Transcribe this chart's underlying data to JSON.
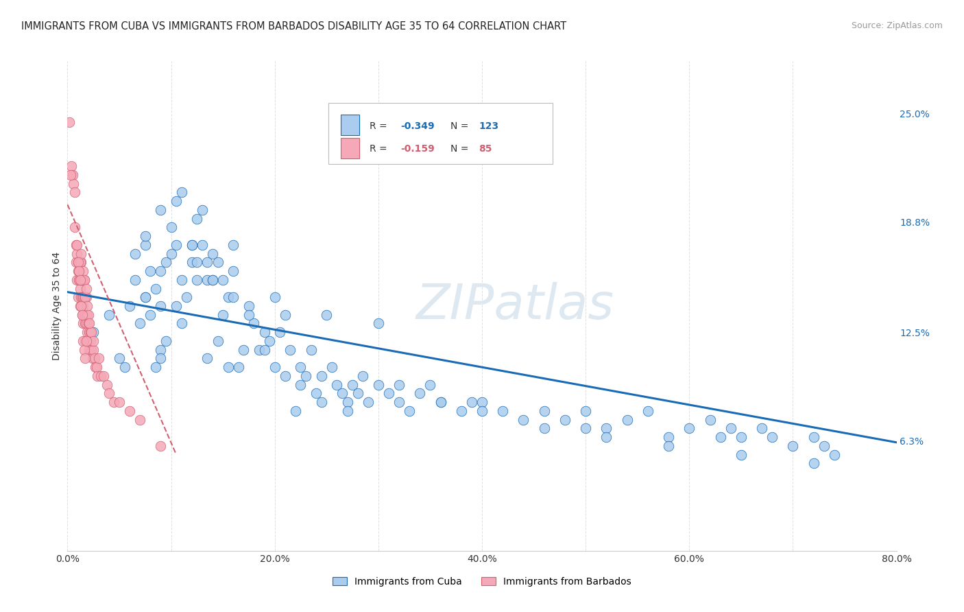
{
  "title": "IMMIGRANTS FROM CUBA VS IMMIGRANTS FROM BARBADOS DISABILITY AGE 35 TO 64 CORRELATION CHART",
  "source": "Source: ZipAtlas.com",
  "ylabel": "Disability Age 35 to 64",
  "xlim": [
    0.0,
    0.8
  ],
  "ylim": [
    0.0,
    0.28
  ],
  "xticks": [
    0.0,
    0.1,
    0.2,
    0.3,
    0.4,
    0.5,
    0.6,
    0.7,
    0.8
  ],
  "xticklabels": [
    "0.0%",
    "",
    "20.0%",
    "",
    "40.0%",
    "",
    "60.0%",
    "",
    "80.0%"
  ],
  "right_yticks": [
    0.063,
    0.125,
    0.188,
    0.25
  ],
  "right_yticklabels": [
    "6.3%",
    "12.5%",
    "18.8%",
    "25.0%"
  ],
  "cuba_color": "#aaccee",
  "barbados_color": "#f5a8b8",
  "trendline_cuba_color": "#1a6bb5",
  "trendline_barbados_color": "#d06070",
  "watermark_color": "#dde8f0",
  "cuba_scatter_x": [
    0.025,
    0.04,
    0.05,
    0.055,
    0.06,
    0.065,
    0.065,
    0.07,
    0.075,
    0.075,
    0.08,
    0.08,
    0.085,
    0.085,
    0.09,
    0.09,
    0.09,
    0.095,
    0.095,
    0.1,
    0.1,
    0.105,
    0.105,
    0.105,
    0.11,
    0.11,
    0.115,
    0.12,
    0.12,
    0.125,
    0.125,
    0.13,
    0.13,
    0.135,
    0.135,
    0.14,
    0.14,
    0.145,
    0.145,
    0.15,
    0.15,
    0.155,
    0.155,
    0.16,
    0.16,
    0.165,
    0.17,
    0.175,
    0.18,
    0.185,
    0.19,
    0.195,
    0.2,
    0.2,
    0.205,
    0.21,
    0.215,
    0.22,
    0.225,
    0.23,
    0.235,
    0.24,
    0.245,
    0.25,
    0.255,
    0.26,
    0.265,
    0.27,
    0.275,
    0.28,
    0.285,
    0.29,
    0.3,
    0.3,
    0.31,
    0.32,
    0.33,
    0.34,
    0.35,
    0.36,
    0.38,
    0.39,
    0.4,
    0.42,
    0.44,
    0.46,
    0.48,
    0.5,
    0.5,
    0.52,
    0.54,
    0.56,
    0.58,
    0.6,
    0.62,
    0.63,
    0.64,
    0.65,
    0.67,
    0.68,
    0.7,
    0.72,
    0.73,
    0.74,
    0.075,
    0.09,
    0.11,
    0.12,
    0.125,
    0.135,
    0.14,
    0.16,
    0.175,
    0.19,
    0.21,
    0.225,
    0.245,
    0.27,
    0.32,
    0.36,
    0.4,
    0.46,
    0.52,
    0.58,
    0.65,
    0.72,
    0.075,
    0.09
  ],
  "cuba_scatter_y": [
    0.125,
    0.135,
    0.11,
    0.105,
    0.14,
    0.155,
    0.17,
    0.13,
    0.175,
    0.145,
    0.135,
    0.16,
    0.15,
    0.105,
    0.115,
    0.14,
    0.16,
    0.12,
    0.165,
    0.17,
    0.185,
    0.175,
    0.14,
    0.2,
    0.155,
    0.13,
    0.145,
    0.165,
    0.175,
    0.19,
    0.165,
    0.195,
    0.175,
    0.155,
    0.11,
    0.17,
    0.155,
    0.165,
    0.12,
    0.135,
    0.155,
    0.145,
    0.105,
    0.16,
    0.175,
    0.105,
    0.115,
    0.14,
    0.13,
    0.115,
    0.125,
    0.12,
    0.145,
    0.105,
    0.125,
    0.135,
    0.115,
    0.08,
    0.105,
    0.1,
    0.115,
    0.09,
    0.1,
    0.135,
    0.105,
    0.095,
    0.09,
    0.085,
    0.095,
    0.09,
    0.1,
    0.085,
    0.095,
    0.13,
    0.09,
    0.085,
    0.08,
    0.09,
    0.095,
    0.085,
    0.08,
    0.085,
    0.085,
    0.08,
    0.075,
    0.08,
    0.075,
    0.08,
    0.07,
    0.07,
    0.075,
    0.08,
    0.065,
    0.07,
    0.075,
    0.065,
    0.07,
    0.065,
    0.07,
    0.065,
    0.06,
    0.065,
    0.06,
    0.055,
    0.18,
    0.195,
    0.205,
    0.175,
    0.155,
    0.165,
    0.155,
    0.145,
    0.135,
    0.115,
    0.1,
    0.095,
    0.085,
    0.08,
    0.095,
    0.085,
    0.08,
    0.07,
    0.065,
    0.06,
    0.055,
    0.05,
    0.145,
    0.11
  ],
  "barbados_scatter_x": [
    0.004,
    0.005,
    0.006,
    0.007,
    0.007,
    0.008,
    0.008,
    0.009,
    0.009,
    0.01,
    0.01,
    0.01,
    0.011,
    0.011,
    0.012,
    0.012,
    0.012,
    0.013,
    0.013,
    0.013,
    0.014,
    0.014,
    0.014,
    0.015,
    0.015,
    0.015,
    0.016,
    0.016,
    0.016,
    0.017,
    0.017,
    0.017,
    0.018,
    0.018,
    0.018,
    0.019,
    0.019,
    0.02,
    0.02,
    0.021,
    0.021,
    0.022,
    0.022,
    0.023,
    0.023,
    0.024,
    0.025,
    0.025,
    0.026,
    0.027,
    0.028,
    0.029,
    0.03,
    0.032,
    0.035,
    0.038,
    0.04,
    0.045,
    0.05,
    0.06,
    0.07,
    0.09,
    0.012,
    0.013,
    0.014,
    0.015,
    0.016,
    0.017,
    0.018,
    0.019,
    0.02,
    0.021,
    0.009,
    0.01,
    0.011,
    0.012,
    0.013,
    0.014,
    0.015,
    0.016,
    0.017,
    0.018,
    0.002,
    0.003
  ],
  "barbados_scatter_y": [
    0.22,
    0.215,
    0.21,
    0.205,
    0.185,
    0.175,
    0.165,
    0.17,
    0.155,
    0.165,
    0.145,
    0.16,
    0.155,
    0.16,
    0.14,
    0.15,
    0.155,
    0.145,
    0.155,
    0.165,
    0.135,
    0.145,
    0.155,
    0.14,
    0.13,
    0.145,
    0.135,
    0.145,
    0.155,
    0.13,
    0.12,
    0.135,
    0.13,
    0.135,
    0.145,
    0.125,
    0.135,
    0.12,
    0.13,
    0.115,
    0.125,
    0.12,
    0.125,
    0.115,
    0.125,
    0.11,
    0.115,
    0.12,
    0.11,
    0.105,
    0.105,
    0.1,
    0.11,
    0.1,
    0.1,
    0.095,
    0.09,
    0.085,
    0.085,
    0.08,
    0.075,
    0.06,
    0.165,
    0.17,
    0.155,
    0.16,
    0.155,
    0.145,
    0.15,
    0.14,
    0.135,
    0.13,
    0.175,
    0.165,
    0.16,
    0.155,
    0.14,
    0.135,
    0.12,
    0.115,
    0.11,
    0.12,
    0.245,
    0.215
  ],
  "cuba_trend_x": [
    0.0,
    0.8
  ],
  "cuba_trend_y": [
    0.148,
    0.062
  ],
  "barbados_trend_x": [
    0.0,
    0.105
  ],
  "barbados_trend_y": [
    0.198,
    0.055
  ]
}
